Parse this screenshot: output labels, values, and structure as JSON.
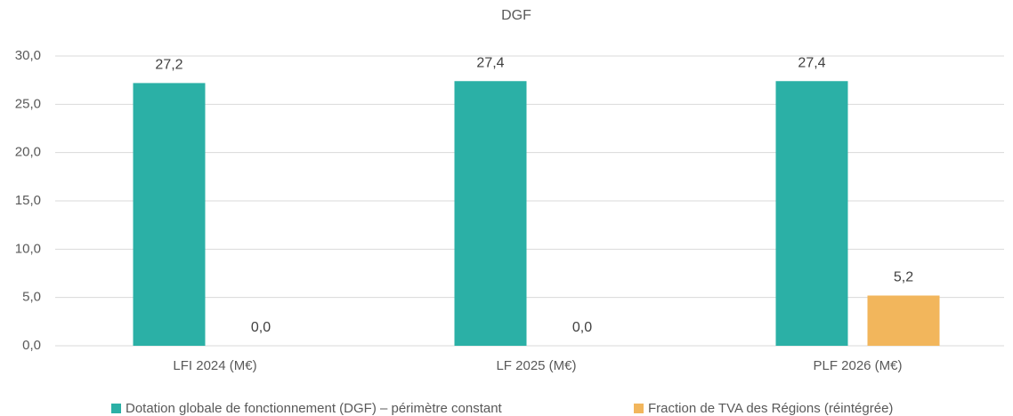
{
  "chart_data": {
    "type": "bar",
    "title": "DGF",
    "categories": [
      "LFI 2024 (M€)",
      "LF 2025 (M€)",
      "PLF 2026 (M€)"
    ],
    "series": [
      {
        "name": "Dotation globale de fonctionnement (DGF) – périmètre constant",
        "color": "#2bb0a6",
        "values": [
          27.2,
          27.4,
          27.4
        ],
        "value_labels": [
          "27,2",
          "27,4",
          "27,4"
        ]
      },
      {
        "name": "Fraction de TVA des Régions (réintégrée)",
        "color": "#f2b65c",
        "values": [
          0,
          0,
          5.2
        ],
        "value_labels": [
          "0,0",
          "0,0",
          "5,2"
        ]
      }
    ],
    "ylim": [
      0,
      30
    ],
    "yticks": [
      {
        "value": 0,
        "label": "0,0"
      },
      {
        "value": 5,
        "label": "5,0"
      },
      {
        "value": 10,
        "label": "10,0"
      },
      {
        "value": 15,
        "label": "15,0"
      },
      {
        "value": 20,
        "label": "20,0"
      },
      {
        "value": 25,
        "label": "25,0"
      },
      {
        "value": 30,
        "label": "30,0"
      }
    ],
    "grid": true,
    "legend": "bottom"
  }
}
